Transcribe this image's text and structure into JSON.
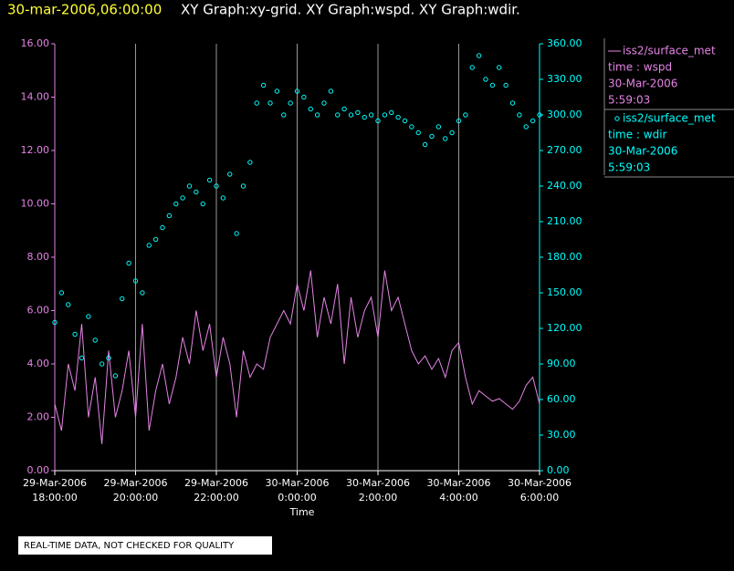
{
  "chart_data": {
    "type": "line",
    "title_time": "30-mar-2006,06:00:00",
    "title": "XY Graph:xy-grid.  XY Graph:wspd.  XY Graph:wdir.",
    "x_label": "Time",
    "note": "REAL-TIME DATA, NOT CHECKED FOR QUALITY",
    "grid": true,
    "xlim": [
      "2006-03-29T18:00",
      "2006-03-30T06:00"
    ],
    "xticks": [
      {
        "value": "2006-03-29T18:00",
        "label": [
          "29-Mar-2006",
          "18:00:00"
        ]
      },
      {
        "value": "2006-03-29T20:00",
        "label": [
          "29-Mar-2006",
          "20:00:00"
        ]
      },
      {
        "value": "2006-03-29T22:00",
        "label": [
          "29-Mar-2006",
          "22:00:00"
        ]
      },
      {
        "value": "2006-03-30T00:00",
        "label": [
          "30-Mar-2006",
          "0:00:00"
        ]
      },
      {
        "value": "2006-03-30T02:00",
        "label": [
          "30-Mar-2006",
          "2:00:00"
        ]
      },
      {
        "value": "2006-03-30T04:00",
        "label": [
          "30-Mar-2006",
          "4:00:00"
        ]
      },
      {
        "value": "2006-03-30T06:00",
        "label": [
          "30-Mar-2006",
          "6:00:00"
        ]
      }
    ],
    "ylim": [
      0,
      16
    ],
    "yticks": [
      {
        "value": 0,
        "label": "0.00"
      },
      {
        "value": 2,
        "label": "2.00"
      },
      {
        "value": 4,
        "label": "4.00"
      },
      {
        "value": 6,
        "label": "6.00"
      },
      {
        "value": 8,
        "label": "8.00"
      },
      {
        "value": 10,
        "label": "10.00"
      },
      {
        "value": 12,
        "label": "12.00"
      },
      {
        "value": 14,
        "label": "14.00"
      },
      {
        "value": 16,
        "label": "16.00"
      }
    ],
    "y2lim": [
      0,
      360
    ],
    "y2ticks": [
      {
        "value": 0,
        "label": "0.00"
      },
      {
        "value": 30,
        "label": "30.00"
      },
      {
        "value": 60,
        "label": "60.00"
      },
      {
        "value": 90,
        "label": "90.00"
      },
      {
        "value": 120,
        "label": "120.00"
      },
      {
        "value": 150,
        "label": "150.00"
      },
      {
        "value": 180,
        "label": "180.00"
      },
      {
        "value": 210,
        "label": "210.00"
      },
      {
        "value": 240,
        "label": "240.00"
      },
      {
        "value": 270,
        "label": "270.00"
      },
      {
        "value": 300,
        "label": "300.00"
      },
      {
        "value": 330,
        "label": "330.00"
      },
      {
        "value": 360,
        "label": "360.00"
      }
    ],
    "x": [
      "2006-03-29T18:00",
      "2006-03-29T18:10",
      "2006-03-29T18:20",
      "2006-03-29T18:30",
      "2006-03-29T18:40",
      "2006-03-29T18:50",
      "2006-03-29T19:00",
      "2006-03-29T19:10",
      "2006-03-29T19:20",
      "2006-03-29T19:30",
      "2006-03-29T19:40",
      "2006-03-29T19:50",
      "2006-03-29T20:00",
      "2006-03-29T20:10",
      "2006-03-29T20:20",
      "2006-03-29T20:30",
      "2006-03-29T20:40",
      "2006-03-29T20:50",
      "2006-03-29T21:00",
      "2006-03-29T21:10",
      "2006-03-29T21:20",
      "2006-03-29T21:30",
      "2006-03-29T21:40",
      "2006-03-29T21:50",
      "2006-03-29T22:00",
      "2006-03-29T22:10",
      "2006-03-29T22:20",
      "2006-03-29T22:30",
      "2006-03-29T22:40",
      "2006-03-29T22:50",
      "2006-03-29T23:00",
      "2006-03-29T23:10",
      "2006-03-29T23:20",
      "2006-03-29T23:30",
      "2006-03-29T23:40",
      "2006-03-29T23:50",
      "2006-03-30T00:00",
      "2006-03-30T00:10",
      "2006-03-30T00:20",
      "2006-03-30T00:30",
      "2006-03-30T00:40",
      "2006-03-30T00:50",
      "2006-03-30T01:00",
      "2006-03-30T01:10",
      "2006-03-30T01:20",
      "2006-03-30T01:30",
      "2006-03-30T01:40",
      "2006-03-30T01:50",
      "2006-03-30T02:00",
      "2006-03-30T02:10",
      "2006-03-30T02:20",
      "2006-03-30T02:30",
      "2006-03-30T02:40",
      "2006-03-30T02:50",
      "2006-03-30T03:00",
      "2006-03-30T03:10",
      "2006-03-30T03:20",
      "2006-03-30T03:30",
      "2006-03-30T03:40",
      "2006-03-30T03:50",
      "2006-03-30T04:00",
      "2006-03-30T04:10",
      "2006-03-30T04:20",
      "2006-03-30T04:30",
      "2006-03-30T04:40",
      "2006-03-30T04:50",
      "2006-03-30T05:00",
      "2006-03-30T05:10",
      "2006-03-30T05:20",
      "2006-03-30T05:30",
      "2006-03-30T05:40",
      "2006-03-30T05:50",
      "2006-03-30T06:00"
    ],
    "series": [
      {
        "name": "iss2/surface_met",
        "legend_lines": [
          "time : wspd",
          "30-Mar-2006",
          "5:59:03"
        ],
        "color": "#e484e4",
        "style": "line",
        "values": [
          2.5,
          1.5,
          4,
          3,
          5.5,
          2,
          3.5,
          1,
          4.5,
          2,
          3,
          4.5,
          2,
          5.5,
          1.5,
          3,
          4,
          2.5,
          3.5,
          5,
          4,
          6,
          4.5,
          5.5,
          3.5,
          5,
          4,
          2,
          4.5,
          3.5,
          4,
          3.8,
          5,
          5.5,
          6,
          5.5,
          7,
          6,
          7.5,
          5,
          6.5,
          5.5,
          7,
          4,
          6.5,
          5,
          6,
          6.5,
          5,
          7.5,
          6,
          6.5,
          5.5,
          4.5,
          4,
          4.3,
          3.8,
          4.2,
          3.5,
          4.5,
          4.8,
          3.5,
          2.5,
          3,
          2.8,
          2.6,
          2.7,
          2.5,
          2.3,
          2.6,
          3.2,
          3.5,
          2.5
        ]
      },
      {
        "name": "iss2/surface_met",
        "legend_lines": [
          "time : wdir",
          "30-Mar-2006",
          "5:59:03"
        ],
        "color": "#00ffff",
        "style": "scatter",
        "axis": "y2",
        "values": [
          125,
          150,
          140,
          115,
          95,
          130,
          110,
          90,
          95,
          80,
          145,
          175,
          160,
          150,
          190,
          195,
          205,
          215,
          225,
          230,
          240,
          235,
          225,
          245,
          240,
          230,
          250,
          200,
          240,
          260,
          310,
          325,
          310,
          320,
          300,
          310,
          320,
          315,
          305,
          300,
          310,
          320,
          300,
          305,
          300,
          302,
          298,
          300,
          295,
          300,
          302,
          298,
          295,
          290,
          285,
          275,
          282,
          290,
          280,
          285,
          295,
          300,
          340,
          350,
          330,
          325,
          340,
          325,
          310,
          300,
          290,
          295,
          300
        ]
      }
    ]
  }
}
